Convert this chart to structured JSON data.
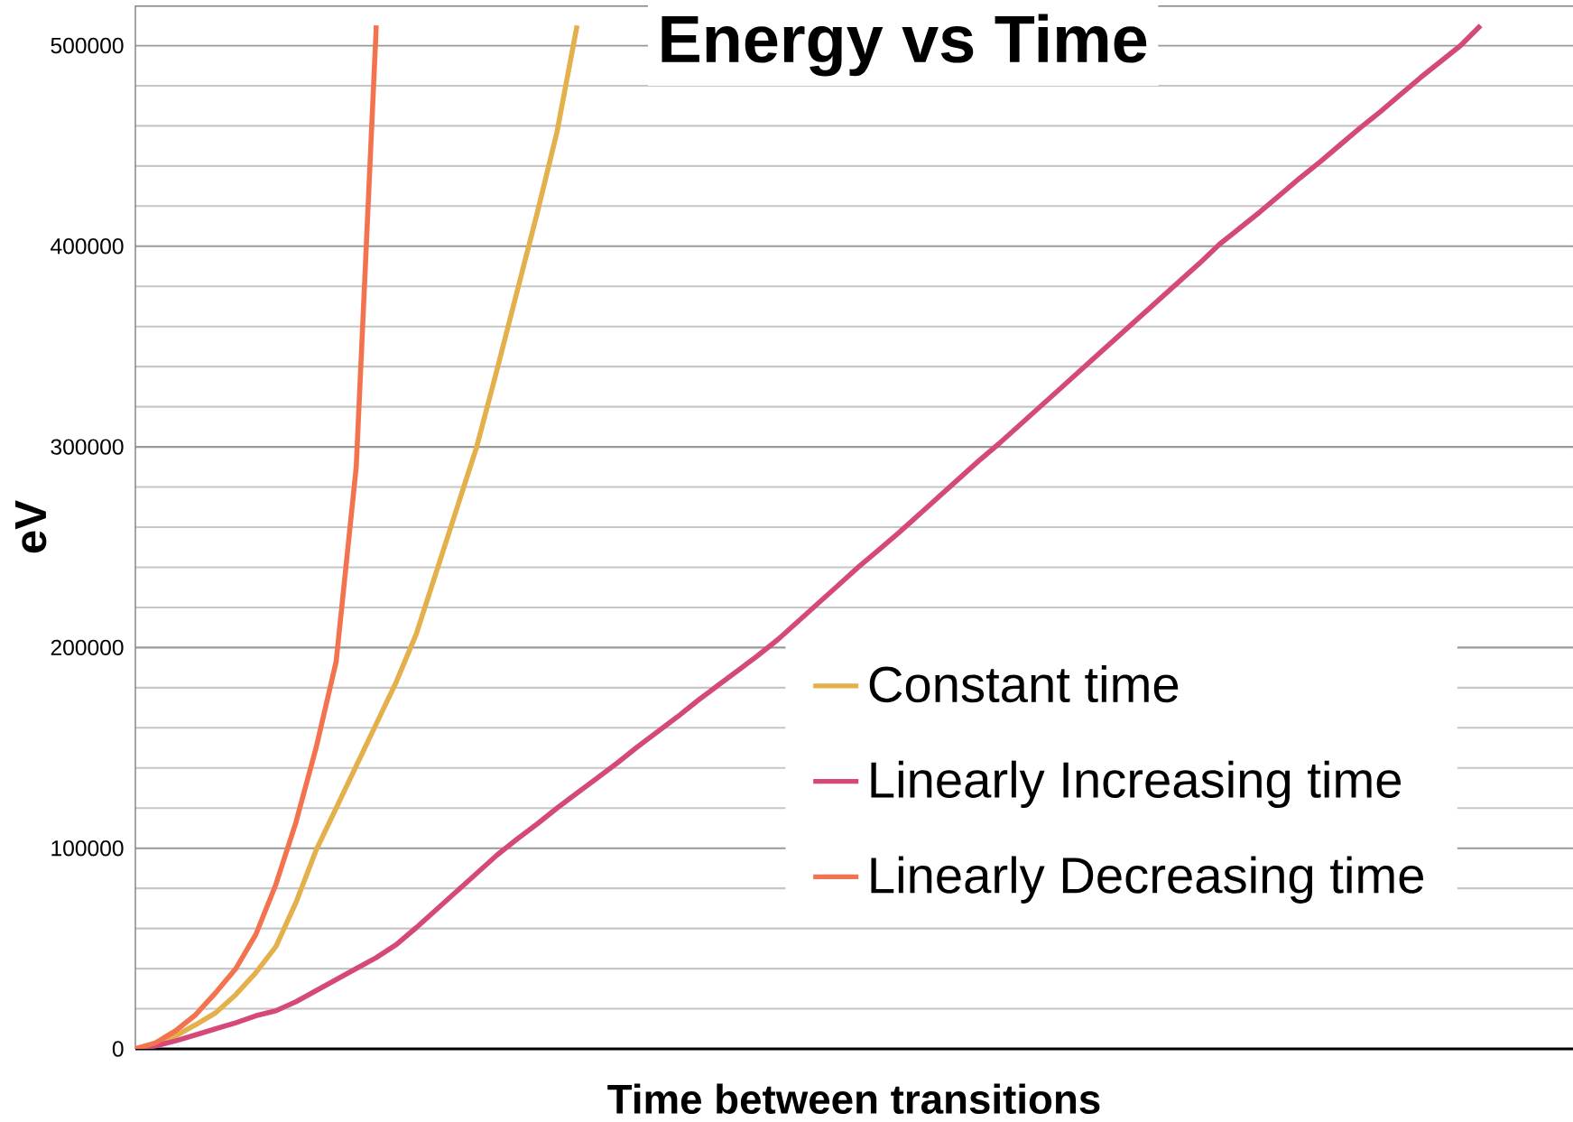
{
  "chart_data": {
    "type": "line",
    "title": "Energy vs Time",
    "xlabel": "Time between transitions",
    "ylabel": "eV",
    "categories": [
      null,
      null,
      null,
      null,
      null,
      null,
      null,
      null,
      null,
      null,
      null,
      null,
      null,
      null,
      null,
      null,
      null,
      null,
      null,
      null,
      null,
      null,
      null,
      null,
      null,
      null,
      null,
      null,
      null,
      null,
      null,
      null,
      null,
      null,
      null,
      null,
      null,
      null,
      null,
      null,
      null,
      null,
      null,
      null,
      null,
      null,
      null,
      null,
      null,
      null,
      null,
      null,
      null,
      null,
      null,
      null,
      null,
      null,
      null,
      null,
      null,
      null,
      null,
      null,
      null,
      null,
      null,
      null,
      null,
      null,
      null,
      null
    ],
    "series": [
      {
        "name": "Constant time",
        "color": "#e3b04b",
        "values": [
          0,
          2500,
          6500,
          12000,
          18000,
          27000,
          38000,
          51000,
          73000,
          99000,
          120000,
          141000,
          162000,
          183000,
          207000,
          238000,
          269000,
          300000,
          338000,
          377000,
          416000,
          457000,
          510000,
          null,
          null,
          null,
          null,
          null,
          null,
          null,
          null,
          null,
          null,
          null,
          null,
          null,
          null,
          null,
          null,
          null,
          null,
          null,
          null,
          null,
          null,
          null,
          null,
          null,
          null,
          null,
          null,
          null,
          null,
          null,
          null,
          null,
          null,
          null,
          null,
          null,
          null,
          null,
          null,
          null,
          null,
          null,
          null,
          null,
          null,
          null,
          null,
          null
        ]
      },
      {
        "name": "Linearly Increasing time",
        "color": "#d4487a",
        "values": [
          0,
          1500,
          4000,
          7000,
          10000,
          13000,
          16500,
          19000,
          23500,
          29000,
          34500,
          40000,
          45500,
          52000,
          60500,
          69500,
          78500,
          87500,
          96500,
          104500,
          112000,
          120000,
          127500,
          135000,
          142500,
          150500,
          158000,
          165500,
          173500,
          181000,
          188500,
          196000,
          204000,
          213000,
          222000,
          231000,
          240000,
          248500,
          257000,
          266000,
          275000,
          284000,
          293000,
          301500,
          310500,
          319500,
          328500,
          337500,
          346500,
          355500,
          364500,
          373500,
          382500,
          391500,
          401000,
          409000,
          417000,
          425500,
          434000,
          442000,
          450500,
          459000,
          467000,
          475500,
          484000,
          492000,
          500000,
          510000,
          null,
          null,
          null,
          null
        ]
      },
      {
        "name": "Linearly Decreasing time",
        "color": "#f4734f",
        "values": [
          0,
          3000,
          9000,
          17000,
          28000,
          40000,
          57000,
          82000,
          113000,
          150000,
          193000,
          290000,
          510000,
          null,
          null,
          null,
          null,
          null,
          null,
          null,
          null,
          null,
          null,
          null,
          null,
          null,
          null,
          null,
          null,
          null,
          null,
          null,
          null,
          null,
          null,
          null,
          null,
          null,
          null,
          null,
          null,
          null,
          null,
          null,
          null,
          null,
          null,
          null,
          null,
          null,
          null,
          null,
          null,
          null,
          null,
          null,
          null,
          null,
          null,
          null,
          null,
          null,
          null,
          null,
          null,
          null,
          null,
          null,
          null,
          null,
          null,
          null
        ]
      }
    ],
    "ylim": [
      0,
      520000
    ],
    "yticks": [
      0,
      100000,
      200000,
      300000,
      400000,
      500000
    ],
    "grid": "y",
    "legend": "bottom right"
  }
}
